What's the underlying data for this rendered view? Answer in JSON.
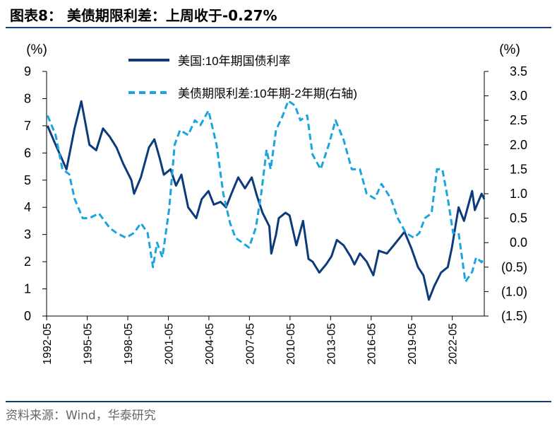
{
  "header": {
    "title": "图表8：  美债期限利差：上周收于-0.27%"
  },
  "footer": {
    "source": "资料来源：Wind，华泰研究"
  },
  "colors": {
    "series_primary": "#0d3a7a",
    "series_secondary": "#1aa4e0",
    "rule": "#0f3f82"
  },
  "chart_data": {
    "type": "line",
    "title": "美债期限利差：上周收于-0.27%",
    "left_axis": {
      "unit_label": "(%)",
      "ylim": [
        0,
        9
      ],
      "ticks": [
        "0",
        "1",
        "2",
        "3",
        "4",
        "5",
        "6",
        "7",
        "8",
        "9"
      ]
    },
    "right_axis": {
      "unit_label": "(%)",
      "ylim": [
        -1.5,
        3.5
      ],
      "ticks": [
        "(1.5)",
        "(1.0)",
        "(0.5)",
        "0.0",
        "0.5",
        "1.0",
        "1.5",
        "2.0",
        "2.5",
        "3.0",
        "3.5"
      ]
    },
    "xlim": [
      1992.33,
      2024.7
    ],
    "x_tick_labels": [
      "1992-05",
      "1995-05",
      "1998-05",
      "2001-05",
      "2004-05",
      "2007-05",
      "2010-05",
      "2013-05",
      "2016-05",
      "2019-05",
      "2022-05"
    ],
    "legend_position": "top-center",
    "series": [
      {
        "name": "美国:10年期国债利率",
        "axis": "left",
        "style": "solid",
        "x": [
          1992.4,
          1993.0,
          1993.8,
          1994.4,
          1994.9,
          1995.5,
          1996.0,
          1996.5,
          1997.0,
          1997.5,
          1998.0,
          1998.6,
          1998.8,
          1999.3,
          1999.9,
          2000.3,
          2000.7,
          2001.0,
          2001.5,
          2001.9,
          2002.3,
          2002.8,
          2003.4,
          2003.8,
          2004.3,
          2004.7,
          2005.2,
          2005.6,
          2006.0,
          2006.5,
          2007.0,
          2007.5,
          2007.9,
          2008.3,
          2008.8,
          2008.95,
          2009.3,
          2009.5,
          2010.0,
          2010.3,
          2010.8,
          2011.3,
          2011.7,
          2012.0,
          2012.5,
          2013.0,
          2013.4,
          2013.8,
          2014.3,
          2014.8,
          2015.1,
          2015.5,
          2016.0,
          2016.5,
          2016.9,
          2017.5,
          2018.0,
          2018.8,
          2019.3,
          2019.8,
          2020.2,
          2020.6,
          2021.0,
          2021.5,
          2022.0,
          2022.3,
          2022.8,
          2023.2,
          2023.8,
          2024.0,
          2024.5,
          2024.7
        ],
        "values": [
          7.0,
          6.3,
          5.4,
          6.9,
          7.9,
          6.3,
          6.1,
          6.9,
          6.6,
          6.2,
          5.6,
          5.0,
          4.5,
          5.1,
          6.2,
          6.5,
          5.8,
          5.2,
          5.4,
          4.8,
          5.2,
          4.0,
          3.6,
          4.3,
          4.6,
          4.1,
          4.2,
          4.0,
          4.5,
          5.1,
          4.7,
          5.1,
          4.4,
          3.8,
          3.3,
          2.3,
          3.0,
          3.6,
          3.8,
          3.7,
          2.6,
          3.5,
          2.1,
          2.0,
          1.6,
          1.9,
          2.2,
          2.8,
          2.6,
          2.2,
          1.9,
          2.3,
          2.0,
          1.5,
          2.4,
          2.3,
          2.6,
          3.1,
          2.5,
          1.8,
          1.5,
          0.6,
          1.1,
          1.6,
          1.8,
          2.5,
          4.0,
          3.5,
          4.6,
          3.9,
          4.5,
          4.3
        ]
      },
      {
        "name": "美债期限利差:10年期-2年期(右轴)",
        "axis": "right",
        "style": "dashed",
        "x": [
          1992.4,
          1993.0,
          1993.5,
          1994.0,
          1994.4,
          1995.0,
          1995.5,
          1996.2,
          1997.0,
          1997.5,
          1998.2,
          1998.8,
          1999.3,
          1999.8,
          2000.2,
          2000.5,
          2000.9,
          2001.4,
          2001.8,
          2002.2,
          2002.8,
          2003.3,
          2003.7,
          2004.3,
          2004.9,
          2005.4,
          2005.9,
          2006.3,
          2006.8,
          2007.3,
          2007.8,
          2008.2,
          2008.6,
          2008.9,
          2009.3,
          2009.8,
          2010.2,
          2010.7,
          2011.1,
          2011.6,
          2012.0,
          2012.6,
          2013.2,
          2013.7,
          2014.3,
          2014.9,
          2015.5,
          2016.0,
          2016.6,
          2017.1,
          2017.8,
          2018.3,
          2018.9,
          2019.5,
          2019.9,
          2020.3,
          2020.8,
          2021.2,
          2021.6,
          2022.0,
          2022.4,
          2022.8,
          2023.3,
          2023.8,
          2024.1,
          2024.5,
          2024.7
        ],
        "values": [
          2.6,
          2.2,
          1.5,
          1.4,
          0.9,
          0.5,
          0.5,
          0.6,
          0.3,
          0.2,
          0.1,
          0.2,
          0.4,
          0.2,
          -0.5,
          0.0,
          -0.3,
          0.7,
          2.0,
          2.3,
          2.2,
          2.5,
          2.4,
          2.7,
          2.0,
          1.0,
          0.4,
          0.1,
          0.0,
          -0.1,
          0.3,
          1.0,
          1.9,
          1.5,
          2.3,
          2.6,
          2.9,
          2.8,
          2.5,
          2.6,
          1.8,
          1.5,
          2.0,
          2.5,
          2.1,
          1.5,
          1.5,
          1.0,
          0.9,
          1.2,
          0.9,
          0.5,
          0.2,
          0.1,
          0.2,
          0.5,
          0.6,
          1.5,
          1.5,
          0.9,
          0.2,
          0.2,
          -0.8,
          -0.6,
          -0.3,
          -0.4,
          -0.3
        ]
      }
    ]
  }
}
